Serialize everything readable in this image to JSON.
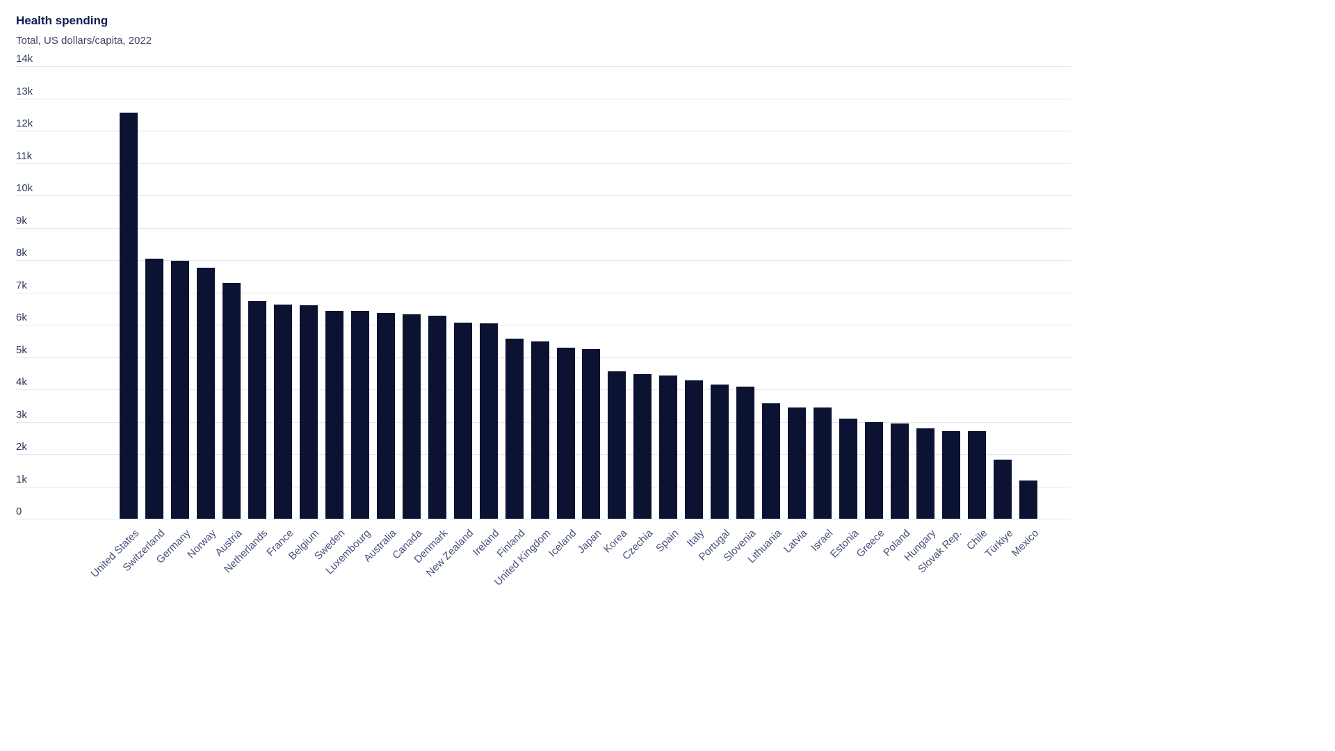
{
  "chart_data": {
    "type": "bar",
    "title": "Health spending",
    "subtitle": "Total, US dollars/capita, 2022",
    "categories": [
      "United States",
      "Switzerland",
      "Germany",
      "Norway",
      "Austria",
      "Netherlands",
      "France",
      "Belgium",
      "Sweden",
      "Luxembourg",
      "Australia",
      "Canada",
      "Denmark",
      "New Zealand",
      "Ireland",
      "Finland",
      "United Kingdom",
      "Iceland",
      "Japan",
      "Korea",
      "Czechia",
      "Spain",
      "Italy",
      "Portugal",
      "Slovenia",
      "Lithuania",
      "Latvia",
      "Israel",
      "Estonia",
      "Greece",
      "Poland",
      "Hungary",
      "Slovak Rep.",
      "Chile",
      "Türkiye",
      "Mexico"
    ],
    "values": [
      12550,
      8050,
      7970,
      7770,
      7280,
      6730,
      6630,
      6600,
      6440,
      6430,
      6370,
      6320,
      6280,
      6060,
      6050,
      5560,
      5490,
      5290,
      5250,
      4570,
      4480,
      4430,
      4290,
      4160,
      4090,
      3560,
      3450,
      3440,
      3090,
      2990,
      2940,
      2790,
      2720,
      2700,
      1830,
      1180
    ],
    "xlabel": "",
    "ylabel": "US dollars/capita",
    "ylim": [
      0,
      14000
    ],
    "ytick_step": 1000,
    "ytick_labels": [
      "0",
      "1k",
      "2k",
      "3k",
      "4k",
      "5k",
      "6k",
      "7k",
      "8k",
      "9k",
      "10k",
      "11k",
      "12k",
      "13k",
      "14k"
    ],
    "grid": true,
    "legend": false,
    "bar_color": "#0b1232",
    "gridline_color": "#e2e5ef",
    "title_color": "#0e1c4e",
    "subtitle_color": "#3e4663",
    "axis_label_color": "#46517a"
  }
}
